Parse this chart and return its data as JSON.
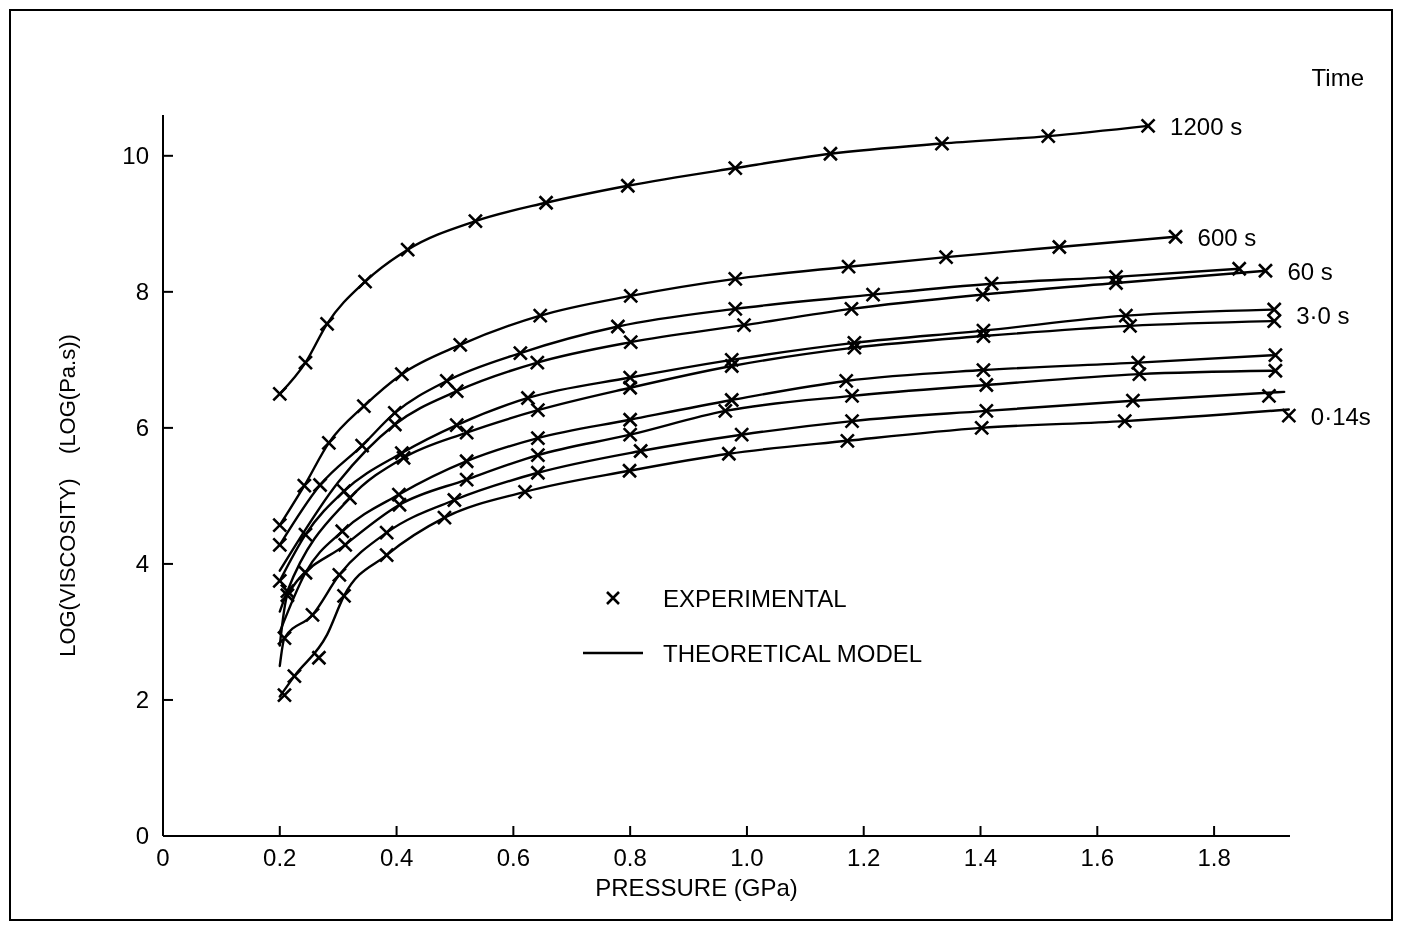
{
  "chart_data": {
    "type": "line",
    "xlabel": "PRESSURE (GPa)",
    "ylabel": "LOG(VISCOSITY)    (LOG(Pa.s))",
    "xlim": [
      0,
      1.93
    ],
    "ylim": [
      0,
      10.6
    ],
    "xticks": [
      0,
      0.2,
      0.4,
      0.6,
      0.8,
      {
        "value": 1.0,
        "label": "1.0"
      },
      1.2,
      1.4,
      1.6,
      1.8
    ],
    "yticks": [
      0,
      2,
      4,
      6,
      8,
      10
    ],
    "grid": false,
    "legend": "bottom",
    "line_style": "solid",
    "annotations": [
      "Time",
      {
        "text": "1200 s",
        "x": 1.687,
        "y": 10.44
      },
      {
        "text": "600 s",
        "x": 1.734,
        "y": 8.81
      },
      {
        "text": "60 s",
        "x": 1.888,
        "y": 8.31
      },
      {
        "text": "3·0 s",
        "x": 1.903,
        "y": 7.66
      },
      {
        "text": "0·14s",
        "x": 1.928,
        "y": 6.18
      }
    ],
    "series": [
      {
        "name": "EXPERIMENTAL",
        "type": "scatter",
        "marker": "cross",
        "color": "#000000",
        "x": [
          0.2,
          0.244,
          0.281,
          0.346,
          0.419,
          0.535,
          0.656,
          0.796,
          0.98,
          1.143,
          1.334,
          1.516,
          1.687
        ],
        "values": [
          6.5,
          6.96,
          7.53,
          8.15,
          8.62,
          9.04,
          9.31,
          9.56,
          9.82,
          10.03,
          10.18,
          10.29,
          10.44
        ]
      },
      {
        "type": "scatter",
        "marker": "cross",
        "color": "#000000",
        "x": [
          0.2,
          0.242,
          0.284,
          0.344,
          0.409,
          0.509,
          0.646,
          0.801,
          0.98,
          1.174,
          1.341,
          1.535,
          1.734
        ],
        "values": [
          4.57,
          5.15,
          5.78,
          6.32,
          6.79,
          7.22,
          7.65,
          7.94,
          8.19,
          8.37,
          8.51,
          8.66,
          8.81
        ]
      },
      {
        "type": "scatter",
        "marker": "cross",
        "color": "#000000",
        "x": [
          0.2,
          0.269,
          0.341,
          0.397,
          0.486,
          0.612,
          0.779,
          0.98,
          1.216,
          1.419,
          1.632,
          1.843
        ],
        "values": [
          4.28,
          5.16,
          5.74,
          6.22,
          6.69,
          7.1,
          7.49,
          7.75,
          7.96,
          8.12,
          8.22,
          8.34
        ]
      },
      {
        "type": "scatter",
        "marker": "cross",
        "color": "#000000",
        "x": [
          0.397,
          0.503,
          0.641,
          0.801,
          0.995,
          1.179,
          1.404,
          1.632,
          1.888
        ],
        "values": [
          6.05,
          6.54,
          6.96,
          7.26,
          7.51,
          7.75,
          7.96,
          8.13,
          8.31
        ]
      },
      {
        "type": "scatter",
        "marker": "cross",
        "color": "#000000",
        "x": [
          0.2,
          0.244,
          0.31,
          0.409,
          0.503,
          0.625,
          0.8,
          0.974,
          1.184,
          1.405,
          1.649,
          1.903
        ],
        "values": [
          3.75,
          4.43,
          5.07,
          5.63,
          6.04,
          6.44,
          6.74,
          7.0,
          7.25,
          7.43,
          7.65,
          7.74
        ]
      },
      {
        "type": "scatter",
        "marker": "cross",
        "color": "#000000",
        "x": [
          0.213,
          0.32,
          0.412,
          0.52,
          0.642,
          0.8,
          0.974,
          1.184,
          1.405,
          1.656,
          1.903
        ],
        "values": [
          3.6,
          4.97,
          5.56,
          5.93,
          6.26,
          6.59,
          6.91,
          7.18,
          7.35,
          7.5,
          7.57
        ]
      },
      {
        "type": "scatter",
        "marker": "cross",
        "color": "#000000",
        "x": [
          0.244,
          0.307,
          0.404,
          0.52,
          0.642,
          0.8,
          0.974,
          1.17,
          1.405,
          1.67,
          1.905
        ],
        "values": [
          3.87,
          4.48,
          5.02,
          5.51,
          5.85,
          6.12,
          6.41,
          6.69,
          6.85,
          6.96,
          7.07
        ]
      },
      {
        "type": "scatter",
        "marker": "cross",
        "color": "#000000",
        "x": [
          0.213,
          0.312,
          0.405,
          0.52,
          0.642,
          0.8,
          0.963,
          1.18,
          1.41,
          1.672,
          1.905
        ],
        "values": [
          3.54,
          4.28,
          4.87,
          5.24,
          5.6,
          5.9,
          6.25,
          6.47,
          6.63,
          6.79,
          6.84
        ]
      },
      {
        "type": "scatter",
        "marker": "cross",
        "color": "#000000",
        "x": [
          0.208,
          0.256,
          0.302,
          0.383,
          0.499,
          0.642,
          0.818,
          0.991,
          1.18,
          1.41,
          1.661,
          1.894
        ],
        "values": [
          2.91,
          3.25,
          3.84,
          4.46,
          4.94,
          5.34,
          5.66,
          5.9,
          6.1,
          6.25,
          6.4,
          6.47
        ]
      },
      {
        "type": "scatter",
        "marker": "cross",
        "color": "#000000",
        "x": [
          0.208,
          0.225,
          0.267,
          0.31,
          0.383,
          0.482,
          0.62,
          0.799,
          0.969,
          1.172,
          1.402,
          1.647,
          1.928
        ],
        "values": [
          2.07,
          2.35,
          2.62,
          3.53,
          4.13,
          4.68,
          5.06,
          5.37,
          5.62,
          5.81,
          6.0,
          6.1,
          6.18
        ]
      },
      {
        "name": "THEORETICAL MODEL",
        "color": "#000000",
        "x": [
          0.2,
          0.244,
          0.281,
          0.346,
          0.419,
          0.535,
          0.656,
          0.796,
          0.98,
          1.143,
          1.334,
          1.516,
          1.687
        ],
        "values": [
          6.5,
          6.96,
          7.53,
          8.15,
          8.62,
          9.04,
          9.31,
          9.56,
          9.82,
          10.03,
          10.18,
          10.29,
          10.44
        ]
      },
      {
        "color": "#000000",
        "x": [
          0.2,
          0.242,
          0.284,
          0.344,
          0.409,
          0.509,
          0.646,
          0.801,
          0.98,
          1.174,
          1.341,
          1.535,
          1.734
        ],
        "values": [
          4.57,
          5.15,
          5.78,
          6.32,
          6.79,
          7.22,
          7.65,
          7.94,
          8.19,
          8.37,
          8.51,
          8.66,
          8.81
        ]
      },
      {
        "color": "#000000",
        "x": [
          0.2,
          0.269,
          0.341,
          0.397,
          0.486,
          0.612,
          0.779,
          0.98,
          1.216,
          1.419,
          1.632,
          1.843
        ],
        "values": [
          4.28,
          5.16,
          5.74,
          6.22,
          6.69,
          7.1,
          7.49,
          7.75,
          7.96,
          8.12,
          8.22,
          8.34
        ]
      },
      {
        "color": "#000000",
        "x": [
          0.2,
          0.3,
          0.397,
          0.503,
          0.641,
          0.801,
          0.995,
          1.179,
          1.404,
          1.632,
          1.888
        ],
        "values": [
          3.9,
          5.2,
          6.05,
          6.54,
          6.96,
          7.26,
          7.51,
          7.75,
          7.96,
          8.13,
          8.31
        ]
      },
      {
        "color": "#000000",
        "x": [
          0.2,
          0.244,
          0.31,
          0.409,
          0.503,
          0.625,
          0.8,
          0.974,
          1.184,
          1.405,
          1.649,
          1.903
        ],
        "values": [
          3.75,
          4.43,
          5.07,
          5.63,
          6.04,
          6.44,
          6.74,
          7.0,
          7.25,
          7.43,
          7.65,
          7.74
        ]
      },
      {
        "color": "#000000",
        "x": [
          0.2,
          0.213,
          0.32,
          0.412,
          0.52,
          0.642,
          0.8,
          0.974,
          1.184,
          1.405,
          1.656,
          1.903
        ],
        "values": [
          3.3,
          3.6,
          4.97,
          5.56,
          5.93,
          6.26,
          6.59,
          6.91,
          7.18,
          7.35,
          7.5,
          7.57
        ]
      },
      {
        "color": "#000000",
        "x": [
          0.2,
          0.244,
          0.307,
          0.404,
          0.52,
          0.642,
          0.8,
          0.974,
          1.17,
          1.405,
          1.67,
          1.905
        ],
        "values": [
          3.0,
          3.87,
          4.48,
          5.02,
          5.51,
          5.85,
          6.12,
          6.41,
          6.69,
          6.85,
          6.96,
          7.07
        ]
      },
      {
        "color": "#000000",
        "x": [
          0.2,
          0.213,
          0.312,
          0.405,
          0.52,
          0.642,
          0.8,
          0.963,
          1.18,
          1.41,
          1.672,
          1.905
        ],
        "values": [
          2.8,
          3.54,
          4.28,
          4.87,
          5.24,
          5.6,
          5.9,
          6.25,
          6.47,
          6.63,
          6.79,
          6.84
        ]
      },
      {
        "color": "#000000",
        "x": [
          0.2,
          0.208,
          0.256,
          0.302,
          0.383,
          0.499,
          0.642,
          0.818,
          0.991,
          1.18,
          1.41,
          1.661,
          1.92
        ],
        "values": [
          2.5,
          2.91,
          3.25,
          3.84,
          4.46,
          4.94,
          5.34,
          5.66,
          5.9,
          6.1,
          6.25,
          6.4,
          6.53
        ]
      },
      {
        "color": "#000000",
        "x": [
          0.2,
          0.225,
          0.281,
          0.31,
          0.383,
          0.482,
          0.62,
          0.799,
          0.969,
          1.172,
          1.402,
          1.647,
          1.928
        ],
        "values": [
          2.05,
          2.35,
          2.96,
          3.53,
          4.13,
          4.68,
          5.06,
          5.37,
          5.62,
          5.81,
          6.0,
          6.1,
          6.27
        ]
      }
    ]
  }
}
